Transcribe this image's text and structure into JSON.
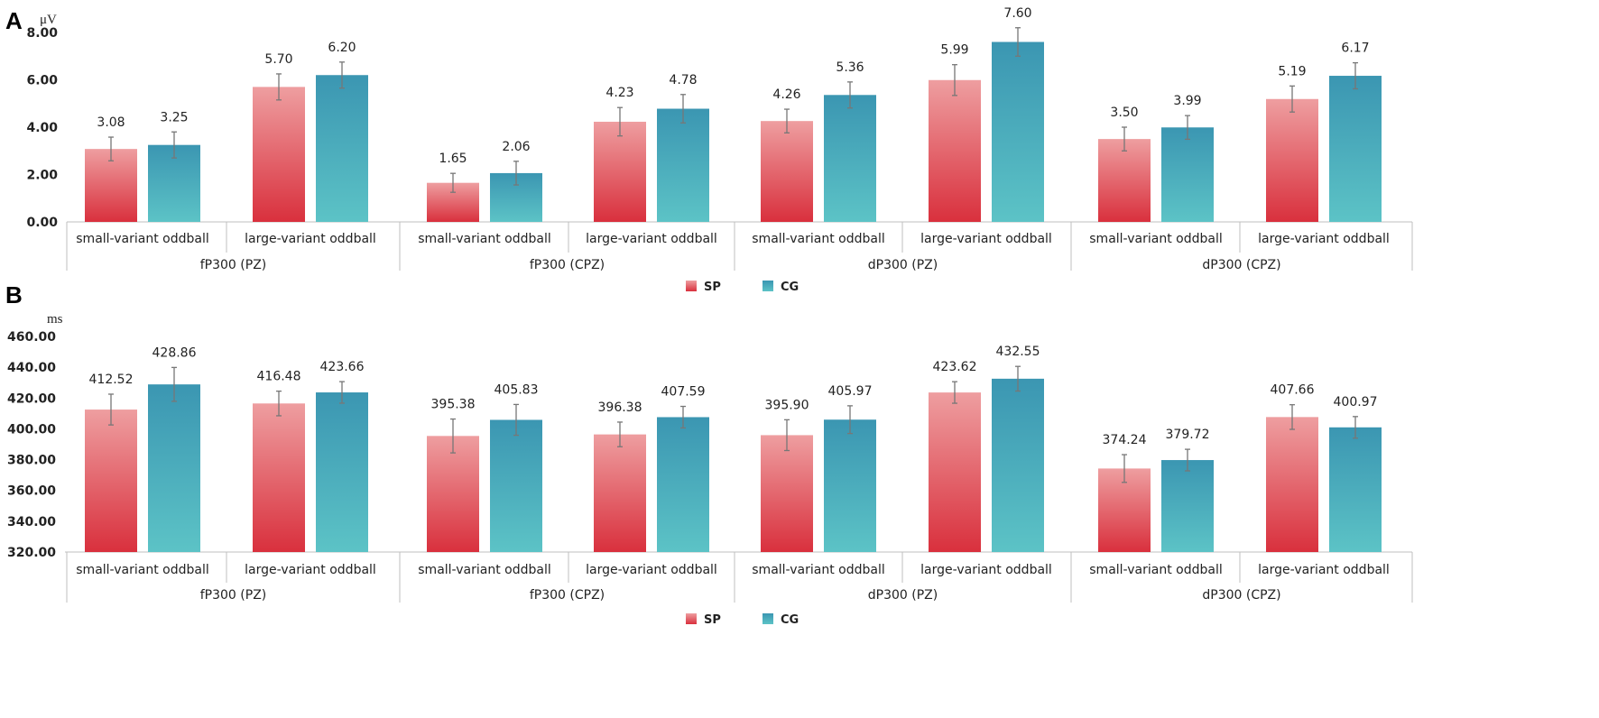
{
  "colors": {
    "sp_top": "#ee9ea0",
    "sp_bottom": "#d9303d",
    "cg_top": "#3b96b2",
    "cg_bottom": "#5cc3c6",
    "err": "#777777",
    "axis": "#bfbfbf"
  },
  "chart_data": [
    {
      "type": "bar",
      "panel_label": "A",
      "unit_label": "μV",
      "ylim": [
        0,
        8
      ],
      "yticks": [
        "0.00",
        "2.00",
        "4.00",
        "6.00",
        "8.00"
      ],
      "groups": [
        "fP300 (PZ)",
        "fP300 (CPZ)",
        "dP300 (PZ)",
        "dP300 (CPZ)"
      ],
      "categories": [
        "small-variant oddball",
        "large-variant oddball",
        "small-variant oddball",
        "large-variant oddball",
        "small-variant oddball",
        "large-variant oddball",
        "small-variant oddball",
        "large-variant oddball"
      ],
      "series": [
        {
          "name": "SP",
          "values": [
            3.08,
            5.7,
            1.65,
            4.23,
            4.26,
            5.99,
            3.5,
            5.19
          ],
          "labels": [
            "3.08",
            "5.70",
            "1.65",
            "4.23",
            "4.26",
            "5.99",
            "3.50",
            "5.19"
          ],
          "errors": [
            0.5,
            0.55,
            0.4,
            0.6,
            0.5,
            0.65,
            0.5,
            0.55
          ]
        },
        {
          "name": "CG",
          "values": [
            3.25,
            6.2,
            2.06,
            4.78,
            5.36,
            7.6,
            3.99,
            6.17
          ],
          "labels": [
            "3.25",
            "6.20",
            "2.06",
            "4.78",
            "5.36",
            "7.60",
            "3.99",
            "6.17"
          ],
          "errors": [
            0.55,
            0.55,
            0.5,
            0.6,
            0.55,
            0.6,
            0.5,
            0.55
          ]
        }
      ],
      "legend": [
        "SP",
        "CG"
      ],
      "legend_position": "bottom-center"
    },
    {
      "type": "bar",
      "panel_label": "B",
      "unit_label": "ms",
      "ylim": [
        320,
        460
      ],
      "yticks": [
        "320.00",
        "340.00",
        "360.00",
        "380.00",
        "400.00",
        "420.00",
        "440.00",
        "460.00"
      ],
      "groups": [
        "fP300 (PZ)",
        "fP300 (CPZ)",
        "dP300 (PZ)",
        "dP300 (CPZ)"
      ],
      "categories": [
        "small-variant oddball",
        "large-variant oddball",
        "small-variant oddball",
        "large-variant oddball",
        "small-variant oddball",
        "large-variant oddball",
        "small-variant oddball",
        "large-variant oddball"
      ],
      "series": [
        {
          "name": "SP",
          "values": [
            412.52,
            416.48,
            395.38,
            396.38,
            395.9,
            423.62,
            374.24,
            407.66
          ],
          "labels": [
            "412.52",
            "416.48",
            "395.38",
            "396.38",
            "395.90",
            "423.62",
            "374.24",
            "407.66"
          ],
          "errors": [
            10,
            8,
            11,
            8,
            10,
            7,
            9,
            8
          ]
        },
        {
          "name": "CG",
          "values": [
            428.86,
            423.66,
            405.83,
            407.59,
            405.97,
            432.55,
            379.72,
            400.97
          ],
          "labels": [
            "428.86",
            "423.66",
            "405.83",
            "407.59",
            "405.97",
            "432.55",
            "379.72",
            "400.97"
          ],
          "errors": [
            11,
            7,
            10,
            7,
            9,
            8,
            7,
            7
          ]
        }
      ],
      "legend": [
        "SP",
        "CG"
      ],
      "legend_position": "bottom-center"
    }
  ]
}
